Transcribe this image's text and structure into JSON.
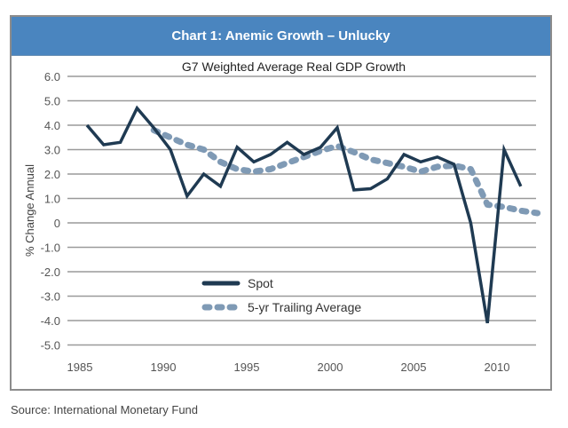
{
  "header": {
    "title": "Chart 1: Anemic Growth – Unlucky"
  },
  "source": "Source: International Monetary Fund",
  "colors": {
    "header_bg": "#4a85bf",
    "spot": "#1f3a52",
    "average": "#7f9ab5",
    "grid": "#9a9a9a"
  },
  "chart_data": {
    "type": "line",
    "title": "G7 Weighted Average Real GDP Growth",
    "xlabel": "",
    "ylabel": "% Change Annual",
    "ylim": [
      -5,
      6
    ],
    "xlim": [
      1985,
      2012
    ],
    "grid": true,
    "legend_position": "bottom-center",
    "y_ticks": [
      "6.0",
      "5.0",
      "4.0",
      "3.0",
      "2.0",
      "1.0",
      "0",
      "-1.0",
      "-2.0",
      "-3.0",
      "-4.0",
      "-5.0"
    ],
    "y_tick_values": [
      6,
      5,
      4,
      3,
      2,
      1,
      0,
      -1,
      -2,
      -3,
      -4,
      -5
    ],
    "x_ticks": [
      "1985",
      "1990",
      "1995",
      "2000",
      "2005",
      "2010"
    ],
    "x_tick_values": [
      1985,
      1990,
      1995,
      2000,
      2005,
      2010
    ],
    "series": [
      {
        "name": "Spot",
        "style": "solid",
        "x": [
          1985,
          1986,
          1987,
          1988,
          1989,
          1990,
          1991,
          1992,
          1993,
          1994,
          1995,
          1996,
          1997,
          1998,
          1999,
          2000,
          2001,
          2002,
          2003,
          2004,
          2005,
          2006,
          2007,
          2008,
          2009,
          2010,
          2011,
          2012
        ],
        "values": [
          4.0,
          3.2,
          3.3,
          4.7,
          3.9,
          3.0,
          1.1,
          2.0,
          1.5,
          3.1,
          2.5,
          2.8,
          3.3,
          2.8,
          3.1,
          3.9,
          1.35,
          1.4,
          1.8,
          2.8,
          2.5,
          2.7,
          2.4,
          0.0,
          -4.1,
          3.0,
          1.5,
          null
        ]
      },
      {
        "name": "5-yr Trailing Average",
        "style": "dotted",
        "x": [
          1989,
          1990,
          1991,
          1992,
          1993,
          1994,
          1995,
          1996,
          1997,
          1998,
          1999,
          2000,
          2001,
          2002,
          2003,
          2004,
          2005,
          2006,
          2007,
          2008,
          2009,
          2010,
          2011,
          2012
        ],
        "values": [
          3.8,
          3.5,
          3.2,
          3.0,
          2.5,
          2.2,
          2.1,
          2.2,
          2.45,
          2.7,
          2.95,
          3.15,
          2.9,
          2.6,
          2.45,
          2.3,
          2.1,
          2.3,
          2.35,
          2.2,
          0.75,
          0.65,
          0.5,
          0.4
        ]
      }
    ]
  }
}
